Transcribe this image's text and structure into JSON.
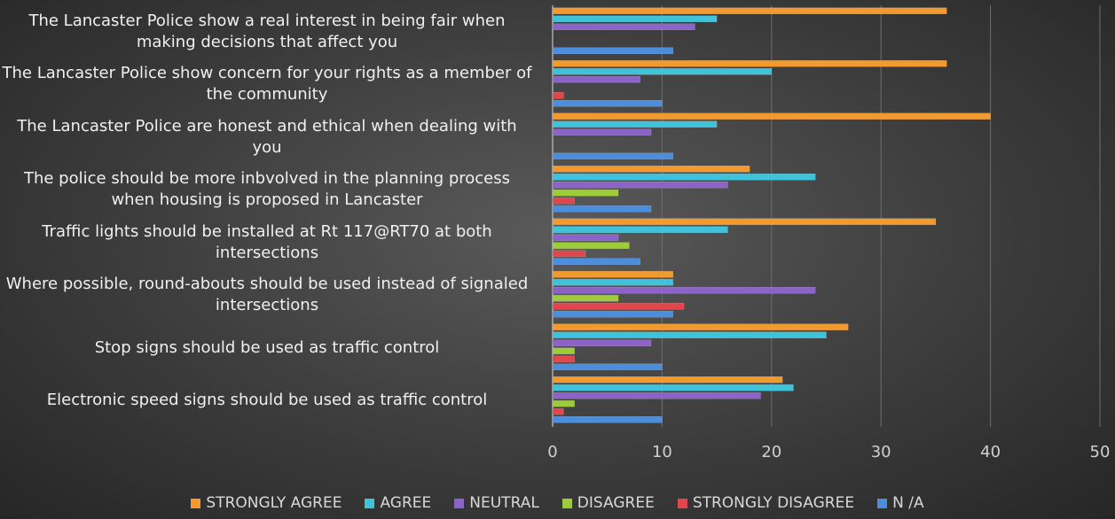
{
  "chart_data": {
    "type": "bar",
    "orientation": "horizontal",
    "categories": [
      "The Lancaster Police show a real interest in being fair when making decisions that affect you",
      "The Lancaster Police show concern for your rights as a member of the community",
      "The Lancaster Police are honest and ethical when dealing with you",
      "The police should be more inbvolved in the planning process when housing is proposed in Lancaster",
      "Traffic lights should be installed at Rt 117@RT70 at both intersections",
      "Where possible, round-abouts should be used instead of signaled intersections",
      "Stop signs should be used as traffic control",
      "Electronic speed signs should be used as traffic control"
    ],
    "series": [
      {
        "name": "STRONGLY AGREE",
        "color": "#f29a2e",
        "values": [
          36,
          36,
          40,
          18,
          35,
          11,
          27,
          21
        ]
      },
      {
        "name": "AGREE",
        "color": "#3ec3db",
        "values": [
          15,
          20,
          15,
          24,
          16,
          11,
          25,
          22
        ]
      },
      {
        "name": "NEUTRAL",
        "color": "#8c64c9",
        "values": [
          13,
          8,
          9,
          16,
          6,
          24,
          9,
          19
        ]
      },
      {
        "name": "DISAGREE",
        "color": "#9dcb3a",
        "values": [
          0,
          0,
          0,
          6,
          7,
          6,
          2,
          2
        ]
      },
      {
        "name": "STRONGLY DISAGREE",
        "color": "#e0464c",
        "values": [
          0,
          1,
          0,
          2,
          3,
          12,
          2,
          1
        ]
      },
      {
        "name": "N /A",
        "color": "#4c8ede",
        "values": [
          11,
          10,
          11,
          9,
          8,
          11,
          10,
          10
        ]
      }
    ],
    "xlim": [
      0,
      50
    ],
    "xticks": [
      0,
      10,
      20,
      30,
      40,
      50
    ],
    "grid": true,
    "legend": "bottom"
  }
}
